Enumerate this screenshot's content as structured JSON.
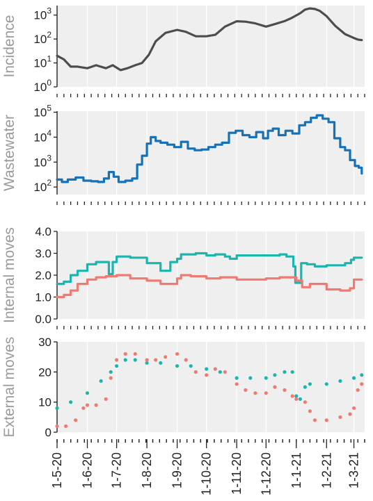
{
  "colors": {
    "incidence": "#4d4d4d",
    "wastewater": "#1672b8",
    "teal": "#1bb5ae",
    "salmon": "#ef7a72",
    "panel_background": "#efefef"
  },
  "chart_data": [
    {
      "type": "line",
      "ylabel": "Incidence",
      "yscale": "log",
      "ylim": [
        1,
        2500
      ],
      "yticks": [
        1,
        10,
        100,
        1000
      ],
      "ytick_labels": [
        [
          "10",
          "0"
        ],
        [
          "10",
          "1"
        ],
        [
          "10",
          "2"
        ],
        [
          "10",
          "3"
        ]
      ],
      "series": [
        {
          "color": "#4d4d4d",
          "step": false,
          "x": [
            "2020-05-01",
            "2020-05-08",
            "2020-05-15",
            "2020-05-22",
            "2020-06-01",
            "2020-06-10",
            "2020-06-20",
            "2020-06-27",
            "2020-07-05",
            "2020-07-12",
            "2020-07-20",
            "2020-07-27",
            "2020-08-03",
            "2020-08-10",
            "2020-08-20",
            "2020-09-01",
            "2020-09-10",
            "2020-09-20",
            "2020-10-01",
            "2020-10-10",
            "2020-10-20",
            "2020-11-01",
            "2020-11-10",
            "2020-11-20",
            "2020-12-01",
            "2020-12-10",
            "2020-12-20",
            "2020-12-27",
            "2021-01-05",
            "2021-01-10",
            "2021-01-15",
            "2021-01-20",
            "2021-01-25",
            "2021-02-01",
            "2021-02-10",
            "2021-02-20",
            "2021-03-01",
            "2021-03-05",
            "2021-03-09"
          ],
          "y": [
            20,
            14,
            7,
            7,
            6,
            8,
            6,
            8,
            5,
            6,
            8,
            10,
            22,
            80,
            180,
            240,
            200,
            130,
            130,
            150,
            330,
            550,
            530,
            450,
            330,
            420,
            560,
            750,
            1200,
            1700,
            1900,
            1800,
            1500,
            900,
            350,
            160,
            110,
            95,
            90
          ]
        }
      ]
    },
    {
      "type": "line",
      "ylabel": "Wastewater",
      "yscale": "log",
      "ylim": [
        50,
        110000
      ],
      "yticks": [
        100,
        1000,
        10000,
        100000
      ],
      "ytick_labels": [
        [
          "10",
          "2"
        ],
        [
          "10",
          "3"
        ],
        [
          "10",
          "4"
        ],
        [
          "10",
          "5"
        ]
      ],
      "series": [
        {
          "color": "#1672b8",
          "step": true,
          "x": [
            "2020-05-01",
            "2020-05-06",
            "2020-05-12",
            "2020-05-20",
            "2020-05-28",
            "2020-06-05",
            "2020-06-12",
            "2020-06-18",
            "2020-06-23",
            "2020-06-28",
            "2020-07-03",
            "2020-07-10",
            "2020-07-17",
            "2020-07-22",
            "2020-07-27",
            "2020-08-01",
            "2020-08-05",
            "2020-08-10",
            "2020-08-15",
            "2020-08-22",
            "2020-08-29",
            "2020-09-05",
            "2020-09-12",
            "2020-09-19",
            "2020-09-26",
            "2020-10-03",
            "2020-10-10",
            "2020-10-17",
            "2020-10-24",
            "2020-10-31",
            "2020-11-07",
            "2020-11-14",
            "2020-11-21",
            "2020-11-28",
            "2020-12-03",
            "2020-12-08",
            "2020-12-14",
            "2020-12-21",
            "2020-12-28",
            "2021-01-04",
            "2021-01-10",
            "2021-01-16",
            "2021-01-22",
            "2021-01-28",
            "2021-02-03",
            "2021-02-09",
            "2021-02-15",
            "2021-02-20",
            "2021-02-25",
            "2021-03-02",
            "2021-03-06",
            "2021-03-09"
          ],
          "y": [
            200,
            160,
            200,
            240,
            180,
            170,
            160,
            220,
            400,
            260,
            160,
            180,
            220,
            800,
            1800,
            5500,
            10000,
            7000,
            6000,
            5000,
            4000,
            6500,
            3500,
            3000,
            3200,
            4000,
            5000,
            6000,
            15000,
            18000,
            12000,
            10000,
            16000,
            9000,
            18000,
            22000,
            12000,
            18000,
            14000,
            30000,
            40000,
            60000,
            75000,
            55000,
            40000,
            9000,
            4000,
            3000,
            1200,
            700,
            600,
            350
          ]
        }
      ]
    },
    {
      "type": "line",
      "ylabel": "Internal moves",
      "yscale": "linear",
      "ylim": [
        0,
        4
      ],
      "yticks": [
        0,
        1,
        2,
        3,
        4
      ],
      "ytick_labels": [
        [
          "0.0"
        ],
        [
          "1.0"
        ],
        [
          "2.0"
        ],
        [
          "3.0"
        ],
        [
          "4.0"
        ]
      ],
      "series": [
        {
          "color": "#1bb5ae",
          "step": true,
          "x": [
            "2020-05-01",
            "2020-05-08",
            "2020-05-15",
            "2020-05-22",
            "2020-06-01",
            "2020-06-10",
            "2020-06-20",
            "2020-06-23",
            "2020-06-27",
            "2020-07-01",
            "2020-07-15",
            "2020-08-01",
            "2020-08-15",
            "2020-08-25",
            "2020-09-01",
            "2020-09-05",
            "2020-09-12",
            "2020-09-20",
            "2020-10-01",
            "2020-10-10",
            "2020-10-20",
            "2020-10-25",
            "2020-11-01",
            "2020-11-15",
            "2020-12-01",
            "2020-12-15",
            "2020-12-22",
            "2020-12-29",
            "2020-12-31",
            "2021-01-06",
            "2021-01-12",
            "2021-01-20",
            "2021-02-01",
            "2021-02-20",
            "2021-02-26",
            "2021-03-01",
            "2021-03-09"
          ],
          "y": [
            1.6,
            1.7,
            2.0,
            2.2,
            2.5,
            2.6,
            2.6,
            2.05,
            2.6,
            2.85,
            2.8,
            2.55,
            2.2,
            2.6,
            2.75,
            2.95,
            2.95,
            3.0,
            2.9,
            2.95,
            2.85,
            2.75,
            2.9,
            2.9,
            2.9,
            2.95,
            2.85,
            2.4,
            1.65,
            2.55,
            2.5,
            2.4,
            2.45,
            2.55,
            2.7,
            2.8,
            2.8
          ]
        },
        {
          "color": "#ef7a72",
          "step": true,
          "x": [
            "2020-05-01",
            "2020-05-08",
            "2020-05-15",
            "2020-05-22",
            "2020-06-01",
            "2020-06-10",
            "2020-06-20",
            "2020-07-01",
            "2020-07-15",
            "2020-08-01",
            "2020-08-15",
            "2020-09-01",
            "2020-09-05",
            "2020-09-15",
            "2020-10-01",
            "2020-10-15",
            "2020-11-01",
            "2020-11-15",
            "2020-12-01",
            "2020-12-15",
            "2021-01-01",
            "2021-01-07",
            "2021-01-15",
            "2021-02-01",
            "2021-02-15",
            "2021-02-25",
            "2021-03-01",
            "2021-03-09"
          ],
          "y": [
            1.0,
            1.1,
            1.3,
            1.6,
            1.8,
            1.9,
            1.95,
            2.0,
            1.85,
            1.75,
            1.6,
            1.85,
            2.0,
            1.95,
            1.85,
            1.9,
            1.8,
            1.8,
            1.85,
            1.9,
            1.75,
            1.45,
            1.6,
            1.35,
            1.3,
            1.4,
            1.8,
            1.8
          ]
        }
      ]
    },
    {
      "type": "scatter",
      "ylabel": "External moves",
      "yscale": "linear",
      "ylim": [
        0,
        30
      ],
      "yticks": [
        0,
        10,
        20,
        30
      ],
      "ytick_labels": [
        [
          "0"
        ],
        [
          "10"
        ],
        [
          "20"
        ],
        [
          "30"
        ]
      ],
      "series": [
        {
          "color": "#1bb5ae",
          "x": [
            "2020-05-01",
            "2020-05-15",
            "2020-06-01",
            "2020-06-15",
            "2020-06-25",
            "2020-07-01",
            "2020-07-10",
            "2020-07-20",
            "2020-08-01",
            "2020-08-15",
            "2020-09-01",
            "2020-09-15",
            "2020-10-01",
            "2020-10-15",
            "2020-11-01",
            "2020-11-15",
            "2020-12-01",
            "2020-12-10",
            "2020-12-20",
            "2020-12-28",
            "2021-01-01",
            "2021-01-05",
            "2021-01-10",
            "2021-01-15",
            "2021-02-01",
            "2021-02-15",
            "2021-03-01",
            "2021-03-09"
          ],
          "y": [
            8,
            10,
            13,
            17,
            20,
            22,
            24,
            24,
            23,
            23,
            22,
            22,
            21,
            20,
            18,
            18,
            18,
            19,
            20,
            20,
            12,
            11,
            15,
            16,
            16,
            17,
            18,
            19
          ]
        },
        {
          "color": "#ef7a72",
          "x": [
            "2020-05-01",
            "2020-05-10",
            "2020-05-20",
            "2020-05-28",
            "2020-06-01",
            "2020-06-10",
            "2020-06-20",
            "2020-06-25",
            "2020-07-01",
            "2020-07-10",
            "2020-07-20",
            "2020-08-01",
            "2020-08-10",
            "2020-08-20",
            "2020-09-01",
            "2020-09-10",
            "2020-09-20",
            "2020-10-01",
            "2020-10-10",
            "2020-10-20",
            "2020-11-01",
            "2020-11-10",
            "2020-11-20",
            "2020-12-01",
            "2020-12-10",
            "2020-12-20",
            "2020-12-28",
            "2021-01-01",
            "2021-01-10",
            "2021-01-15",
            "2021-01-20",
            "2021-02-01",
            "2021-02-15",
            "2021-02-25",
            "2021-03-01",
            "2021-03-05",
            "2021-03-09"
          ],
          "y": [
            2,
            2,
            4,
            8,
            9,
            9,
            11,
            18,
            24,
            26,
            26,
            24,
            24,
            25,
            26,
            24,
            20,
            19,
            21,
            20,
            16,
            14,
            13,
            13,
            15,
            14,
            12,
            11,
            10,
            7,
            4,
            4,
            5,
            6,
            8,
            14,
            16
          ]
        }
      ]
    }
  ],
  "x_axis": {
    "range": [
      "2020-05-01",
      "2021-03-12"
    ],
    "labels": [
      {
        "date": "2020-05-01",
        "text": "1-5-20"
      },
      {
        "date": "2020-06-01",
        "text": "1-6-20"
      },
      {
        "date": "2020-07-01",
        "text": "1-7-20"
      },
      {
        "date": "2020-08-01",
        "text": "1-8-20"
      },
      {
        "date": "2020-09-01",
        "text": "1-9-20"
      },
      {
        "date": "2020-10-01",
        "text": "1-10-20"
      },
      {
        "date": "2020-11-01",
        "text": "1-11-20"
      },
      {
        "date": "2020-12-01",
        "text": "1-12-20"
      },
      {
        "date": "2021-01-01",
        "text": "1-1-21"
      },
      {
        "date": "2021-02-01",
        "text": "1-2-21"
      },
      {
        "date": "2021-03-01",
        "text": "1-3-21"
      }
    ]
  }
}
